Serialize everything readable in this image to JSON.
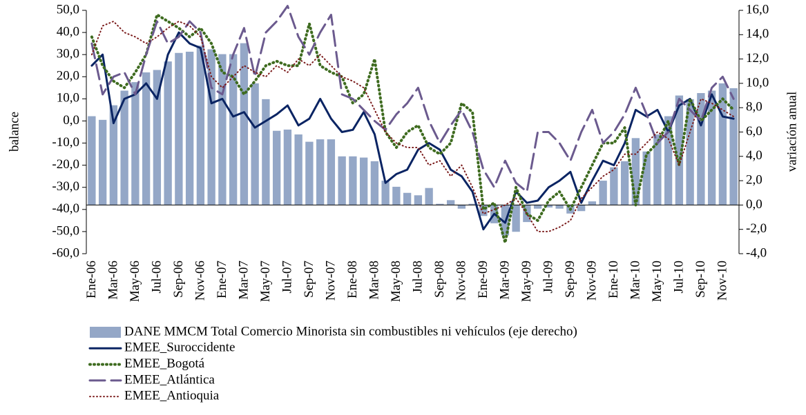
{
  "chart_data": {
    "type": "bar-line",
    "ylabel": "balance",
    "y2label": "variación anual",
    "categories": [
      "Ene-06",
      null,
      "Mar-06",
      null,
      "May-06",
      null,
      "Jul-06",
      null,
      "Sep-06",
      null,
      "Nov-06",
      null,
      "Ene-07",
      null,
      "Mar-07",
      null,
      "May-07",
      null,
      "Jul-07",
      null,
      "Sep-07",
      null,
      "Nov-07",
      null,
      "Ene-08",
      null,
      "Mar-08",
      null,
      "May-08",
      null,
      "Jul-08",
      null,
      "Sep-08",
      null,
      "Nov-08",
      null,
      "Ene-09",
      null,
      "Mar-09",
      null,
      "May-09",
      null,
      "Jul-09",
      null,
      "Sep-09",
      null,
      "Nov-09",
      null,
      "Ene-10",
      null,
      "Mar-10",
      null,
      "May-10",
      null,
      "Jul-10",
      null,
      "Sep-10",
      null,
      "Nov-10",
      null
    ],
    "ylim": [
      -60,
      50
    ],
    "yticks": [
      {
        "value": -60,
        "label": "-60,0"
      },
      {
        "value": -50,
        "label": "-50,0"
      },
      {
        "value": -40,
        "label": "-40,0"
      },
      {
        "value": -30,
        "label": "-30,0"
      },
      {
        "value": -20,
        "label": "-20,0"
      },
      {
        "value": -10,
        "label": "-10,0"
      },
      {
        "value": 0,
        "label": "0,0"
      },
      {
        "value": 10,
        "label": "10,0"
      },
      {
        "value": 20,
        "label": "20,0"
      },
      {
        "value": 30,
        "label": "30,0"
      },
      {
        "value": 40,
        "label": "40,0"
      },
      {
        "value": 50,
        "label": "50,0"
      }
    ],
    "y2lim": [
      -4,
      16
    ],
    "y2ticks": [
      {
        "value": -4,
        "label": "-4,0"
      },
      {
        "value": -2,
        "label": "-2,0"
      },
      {
        "value": 0,
        "label": "0,0"
      },
      {
        "value": 2,
        "label": "2,0"
      },
      {
        "value": 4,
        "label": "4,0"
      },
      {
        "value": 6,
        "label": "6,0"
      },
      {
        "value": 8,
        "label": "8,0"
      },
      {
        "value": 10,
        "label": "10,0"
      },
      {
        "value": 12,
        "label": "12,0"
      },
      {
        "value": 14,
        "label": "14,0"
      },
      {
        "value": 16,
        "label": "16,0"
      }
    ],
    "series": [
      {
        "name": "DANE MMCM Total Comercio Minorista sin combustibles ni vehículos (eje derecho)",
        "type": "bar",
        "axis": "y2",
        "color": "#94a7c7",
        "values": [
          7.3,
          7.0,
          8.2,
          9.4,
          10.1,
          10.9,
          11.1,
          11.8,
          12.5,
          12.6,
          13.1,
          12.8,
          12.4,
          12.4,
          13.3,
          10.0,
          8.7,
          6.1,
          6.2,
          5.8,
          5.2,
          5.4,
          5.4,
          4.0,
          4.0,
          3.9,
          3.6,
          2.0,
          1.5,
          1.0,
          0.8,
          1.4,
          0.1,
          0.4,
          -0.3,
          0.1,
          -0.9,
          -1.5,
          -2.5,
          -2.2,
          -1.4,
          -0.3,
          -0.2,
          -0.3,
          -0.7,
          -0.5,
          0.3,
          2.0,
          3.1,
          3.6,
          5.5,
          4.4,
          5.8,
          7.3,
          9.0,
          8.7,
          9.2,
          9.4,
          10.0,
          9.6
        ]
      },
      {
        "name": "EMEE_Suroccidente",
        "type": "line",
        "style": "solid",
        "color": "#0a2463",
        "values": [
          25,
          30,
          -1,
          10,
          12,
          17,
          10,
          30,
          40,
          35,
          33,
          8,
          10,
          2,
          4,
          -3,
          0,
          3,
          7,
          -2,
          1,
          10,
          1,
          -5,
          -4,
          4,
          -6,
          -28,
          -24,
          -22,
          -13,
          -10,
          -13,
          -22,
          -25,
          -32,
          -49,
          -42,
          -46,
          -32,
          -37,
          -36,
          -30,
          -27,
          -23,
          -37,
          -27,
          -18,
          -20,
          -10,
          5,
          2,
          5,
          -5,
          7,
          10,
          -2,
          12,
          2,
          1
        ]
      },
      {
        "name": "EMEE_Bogotá",
        "type": "line",
        "style": "dotted",
        "color": "#3e6b1f",
        "values": [
          38,
          25,
          18,
          15,
          22,
          30,
          48,
          45,
          42,
          38,
          42,
          35,
          22,
          20,
          12,
          18,
          25,
          27,
          25,
          25,
          44,
          25,
          22,
          20,
          8,
          12,
          28,
          -5,
          -12,
          -5,
          -2,
          -12,
          -15,
          -10,
          8,
          4,
          -40,
          -37,
          -55,
          -30,
          -42,
          -45,
          -36,
          -32,
          -40,
          -30,
          -20,
          -10,
          -10,
          -3,
          -38,
          -15,
          -10,
          0,
          -20,
          10,
          0,
          5,
          10,
          5
        ]
      },
      {
        "name": "EMEE_Atlántica",
        "type": "line",
        "style": "dashed",
        "color": "#6b5a8e",
        "values": [
          35,
          12,
          20,
          22,
          12,
          30,
          45,
          35,
          38,
          45,
          40,
          15,
          12,
          30,
          42,
          20,
          40,
          45,
          52,
          38,
          30,
          40,
          48,
          12,
          10,
          5,
          0,
          -4,
          3,
          8,
          15,
          0,
          -10,
          -2,
          5,
          -5,
          -22,
          -30,
          -18,
          -28,
          -32,
          -5,
          -5,
          -10,
          -18,
          -5,
          5,
          -10,
          -5,
          3,
          15,
          3,
          -10,
          -5,
          10,
          5,
          0,
          15,
          20,
          10
        ]
      },
      {
        "name": "EMEE_Antioquia",
        "type": "line",
        "style": "dotted-thin",
        "color": "#7a1a1a",
        "values": [
          30,
          43,
          45,
          40,
          38,
          35,
          38,
          42,
          45,
          43,
          38,
          20,
          15,
          20,
          25,
          22,
          20,
          25,
          22,
          28,
          25,
          30,
          25,
          20,
          18,
          15,
          5,
          -5,
          -10,
          -12,
          -12,
          -20,
          -18,
          -25,
          -20,
          -30,
          -42,
          -40,
          -38,
          -35,
          -42,
          -50,
          -50,
          -48,
          -45,
          -35,
          -30,
          -25,
          -22,
          -15,
          -15,
          -10,
          -5,
          -8,
          -20,
          -5,
          10,
          8,
          5,
          2
        ]
      }
    ]
  }
}
